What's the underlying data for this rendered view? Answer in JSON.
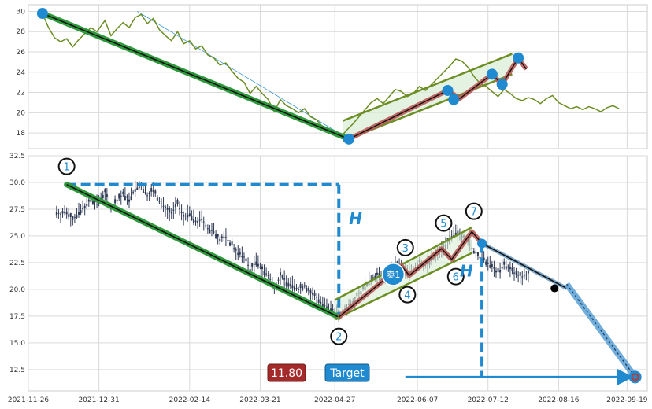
{
  "colors": {
    "trend_green": "#2e9a3c",
    "channel_green": "#6b8e23",
    "wave_red": "#b95a55",
    "blue": "#1f8ad0",
    "price_line": "#6b8e23",
    "candle": "#2f3a55",
    "price_badge": "#a52a2a"
  },
  "chart_data": [
    {
      "type": "line",
      "panel": "top",
      "ylim": [
        17,
        30.5
      ],
      "yticks": [
        "18",
        "20",
        "22",
        "24",
        "26",
        "28",
        "30"
      ],
      "series": [
        {
          "points": [
            [
              "2021-12-03",
              29.8
            ],
            [
              "2021-12-06",
              28.4
            ],
            [
              "2021-12-09",
              27.4
            ],
            [
              "2021-12-12",
              27.0
            ],
            [
              "2021-12-15",
              27.3
            ],
            [
              "2021-12-18",
              26.5
            ],
            [
              "2021-12-21",
              27.2
            ],
            [
              "2021-12-24",
              27.8
            ],
            [
              "2021-12-27",
              28.4
            ],
            [
              "2021-12-30",
              28.0
            ],
            [
              "2022-01-03",
              29.1
            ],
            [
              "2022-01-06",
              27.6
            ],
            [
              "2022-01-09",
              28.3
            ],
            [
              "2022-01-12",
              28.9
            ],
            [
              "2022-01-15",
              28.4
            ],
            [
              "2022-01-18",
              29.4
            ],
            [
              "2022-01-21",
              29.7
            ],
            [
              "2022-01-24",
              28.8
            ],
            [
              "2022-01-27",
              29.3
            ],
            [
              "2022-01-30",
              28.2
            ],
            [
              "2022-02-02",
              27.6
            ],
            [
              "2022-02-05",
              27.1
            ],
            [
              "2022-02-08",
              28.0
            ],
            [
              "2022-02-11",
              26.8
            ],
            [
              "2022-02-14",
              27.1
            ],
            [
              "2022-02-17",
              26.3
            ],
            [
              "2022-02-20",
              26.6
            ],
            [
              "2022-02-23",
              25.7
            ],
            [
              "2022-02-26",
              25.4
            ],
            [
              "2022-03-01",
              24.7
            ],
            [
              "2022-03-04",
              24.9
            ],
            [
              "2022-03-07",
              24.1
            ],
            [
              "2022-03-10",
              23.4
            ],
            [
              "2022-03-13",
              23.0
            ],
            [
              "2022-03-16",
              21.9
            ],
            [
              "2022-03-19",
              22.6
            ],
            [
              "2022-03-22",
              21.9
            ],
            [
              "2022-03-25",
              21.3
            ],
            [
              "2022-03-28",
              20.1
            ],
            [
              "2022-03-31",
              21.3
            ],
            [
              "2022-04-03",
              20.7
            ],
            [
              "2022-04-06",
              20.4
            ],
            [
              "2022-04-09",
              20.0
            ],
            [
              "2022-04-12",
              20.4
            ],
            [
              "2022-04-15",
              19.6
            ],
            [
              "2022-04-18",
              19.3
            ],
            [
              "2022-04-21",
              18.6
            ],
            [
              "2022-04-24",
              18.3
            ],
            [
              "2022-04-27",
              18.0
            ],
            [
              "2022-04-30",
              17.6
            ],
            [
              "2022-05-03",
              18.3
            ],
            [
              "2022-05-06",
              18.9
            ],
            [
              "2022-05-09",
              19.6
            ],
            [
              "2022-05-12",
              20.3
            ],
            [
              "2022-05-15",
              21.0
            ],
            [
              "2022-05-18",
              21.4
            ],
            [
              "2022-05-21",
              20.9
            ],
            [
              "2022-05-24",
              21.6
            ],
            [
              "2022-05-27",
              22.3
            ],
            [
              "2022-05-30",
              22.1
            ],
            [
              "2022-06-02",
              21.6
            ],
            [
              "2022-06-05",
              21.9
            ],
            [
              "2022-06-08",
              22.6
            ],
            [
              "2022-06-11",
              22.2
            ],
            [
              "2022-06-14",
              22.8
            ],
            [
              "2022-06-17",
              23.4
            ],
            [
              "2022-06-20",
              24.0
            ],
            [
              "2022-06-23",
              24.6
            ],
            [
              "2022-06-26",
              25.3
            ],
            [
              "2022-06-29",
              25.1
            ],
            [
              "2022-07-02",
              24.5
            ],
            [
              "2022-07-05",
              23.6
            ],
            [
              "2022-07-08",
              22.9
            ],
            [
              "2022-07-11",
              22.6
            ],
            [
              "2022-07-14",
              22.1
            ],
            [
              "2022-07-17",
              21.6
            ],
            [
              "2022-07-20",
              22.3
            ],
            [
              "2022-07-23",
              21.9
            ],
            [
              "2022-07-26",
              21.4
            ],
            [
              "2022-07-29",
              21.2
            ],
            [
              "2022-08-01",
              21.5
            ],
            [
              "2022-08-04",
              21.3
            ],
            [
              "2022-08-07",
              20.9
            ],
            [
              "2022-08-10",
              21.4
            ],
            [
              "2022-08-13",
              21.7
            ],
            [
              "2022-08-16",
              21.0
            ],
            [
              "2022-08-19",
              20.7
            ],
            [
              "2022-08-22",
              20.4
            ],
            [
              "2022-08-25",
              20.6
            ],
            [
              "2022-08-28",
              20.3
            ],
            [
              "2022-08-31",
              20.6
            ],
            [
              "2022-09-03",
              20.4
            ],
            [
              "2022-09-06",
              20.1
            ],
            [
              "2022-09-09",
              20.5
            ],
            [
              "2022-09-12",
              20.7
            ],
            [
              "2022-09-15",
              20.4
            ]
          ]
        }
      ],
      "trend_line": [
        [
          "2021-12-03",
          29.8
        ],
        [
          "2022-05-04",
          17.4
        ]
      ],
      "thin_arrow": [
        [
          "2022-01-19",
          30.0
        ],
        [
          "2022-05-04",
          17.4
        ]
      ],
      "channel_upper": [
        [
          "2022-05-01",
          19.2
        ],
        [
          "2022-07-24",
          25.8
        ]
      ],
      "channel_lower": [
        [
          "2022-05-01",
          17.2
        ],
        [
          "2022-07-24",
          23.8
        ]
      ],
      "wave_path": [
        [
          "2022-05-04",
          17.4
        ],
        [
          "2022-06-22",
          22.2
        ],
        [
          "2022-06-28",
          21.4
        ],
        [
          "2022-07-14",
          23.8
        ],
        [
          "2022-07-19",
          22.8
        ],
        [
          "2022-07-27",
          25.4
        ],
        [
          "2022-07-31",
          24.3
        ]
      ],
      "pivots": [
        [
          "2021-12-03",
          29.8
        ],
        [
          "2022-05-04",
          17.4
        ],
        [
          "2022-06-22",
          22.2
        ],
        [
          "2022-06-25",
          21.3
        ],
        [
          "2022-07-14",
          23.8
        ],
        [
          "2022-07-19",
          22.8
        ],
        [
          "2022-07-27",
          25.4
        ]
      ]
    },
    {
      "type": "candlestick",
      "panel": "bottom",
      "xlim": [
        "2021-11-26",
        "2022-09-29"
      ],
      "ylim": [
        10.5,
        32.5
      ],
      "xticks": [
        "2021-11-26",
        "2021-12-31",
        "2022-02-14",
        "2022-03-21",
        "2022-04-27",
        "2022-06-07",
        "2022-07-12",
        "2022-08-16",
        "2022-09-19"
      ],
      "yticks": [
        "12.5",
        "15.0",
        "17.5",
        "20.0",
        "22.5",
        "25.0",
        "27.5",
        "30.0",
        "32.5"
      ],
      "trend_line": [
        [
          "2021-12-15",
          29.8
        ],
        [
          "2022-04-29",
          17.4
        ]
      ],
      "channel_upper": [
        [
          "2022-04-27",
          19.0
        ],
        [
          "2022-07-04",
          25.8
        ]
      ],
      "channel_lower": [
        [
          "2022-04-27",
          17.2
        ],
        [
          "2022-07-04",
          23.4
        ]
      ],
      "wave_path": [
        [
          "2022-04-29",
          17.4
        ],
        [
          "2022-05-30",
          22.2
        ],
        [
          "2022-06-03",
          21.3
        ],
        [
          "2022-06-19",
          23.8
        ],
        [
          "2022-06-24",
          22.8
        ],
        [
          "2022-07-04",
          25.4
        ],
        [
          "2022-07-09",
          24.3
        ]
      ],
      "projection_line": [
        [
          "2022-07-09",
          24.3
        ],
        [
          "2022-08-20",
          20.1
        ]
      ],
      "projection_arrow": [
        [
          "2022-08-20",
          20.5
        ],
        [
          "2022-09-23",
          11.8
        ]
      ],
      "end_point": [
        "2022-08-14",
        20.1
      ],
      "h_top_line": [
        [
          "2021-12-15",
          29.8
        ],
        [
          "2022-04-29",
          29.8
        ]
      ],
      "h_vertical": [
        [
          "2022-04-29",
          29.8
        ],
        [
          "2022-04-29",
          17.4
        ]
      ],
      "h2_vertical": [
        [
          "2022-07-09",
          24.3
        ],
        [
          "2022-07-09",
          11.8
        ]
      ],
      "target_line": [
        [
          "2022-06-01",
          11.8
        ],
        [
          "2022-09-23",
          11.8
        ]
      ],
      "sell_marker": [
        "2022-05-26",
        21.4
      ],
      "wave_labels": [
        {
          "label": "1",
          "at": [
            "2021-12-15",
            31.5
          ]
        },
        {
          "label": "2",
          "at": [
            "2022-04-29",
            15.6
          ]
        },
        {
          "label": "3",
          "at": [
            "2022-06-01",
            23.9
          ]
        },
        {
          "label": "4",
          "at": [
            "2022-06-02",
            19.5
          ]
        },
        {
          "label": "5",
          "at": [
            "2022-06-20",
            26.2
          ]
        },
        {
          "label": "6",
          "at": [
            "2022-06-26",
            21.2
          ]
        },
        {
          "label": "7",
          "at": [
            "2022-07-05",
            27.3
          ]
        }
      ],
      "h_labels": [
        {
          "label": "H",
          "at": [
            "2022-05-04",
            26.1
          ]
        },
        {
          "label": "H",
          "at": [
            "2022-06-28",
            21.2
          ]
        }
      ]
    }
  ],
  "annotations": {
    "price_badge": "11.80",
    "target_badge": "Target",
    "sell_marker_label": "卖1"
  }
}
